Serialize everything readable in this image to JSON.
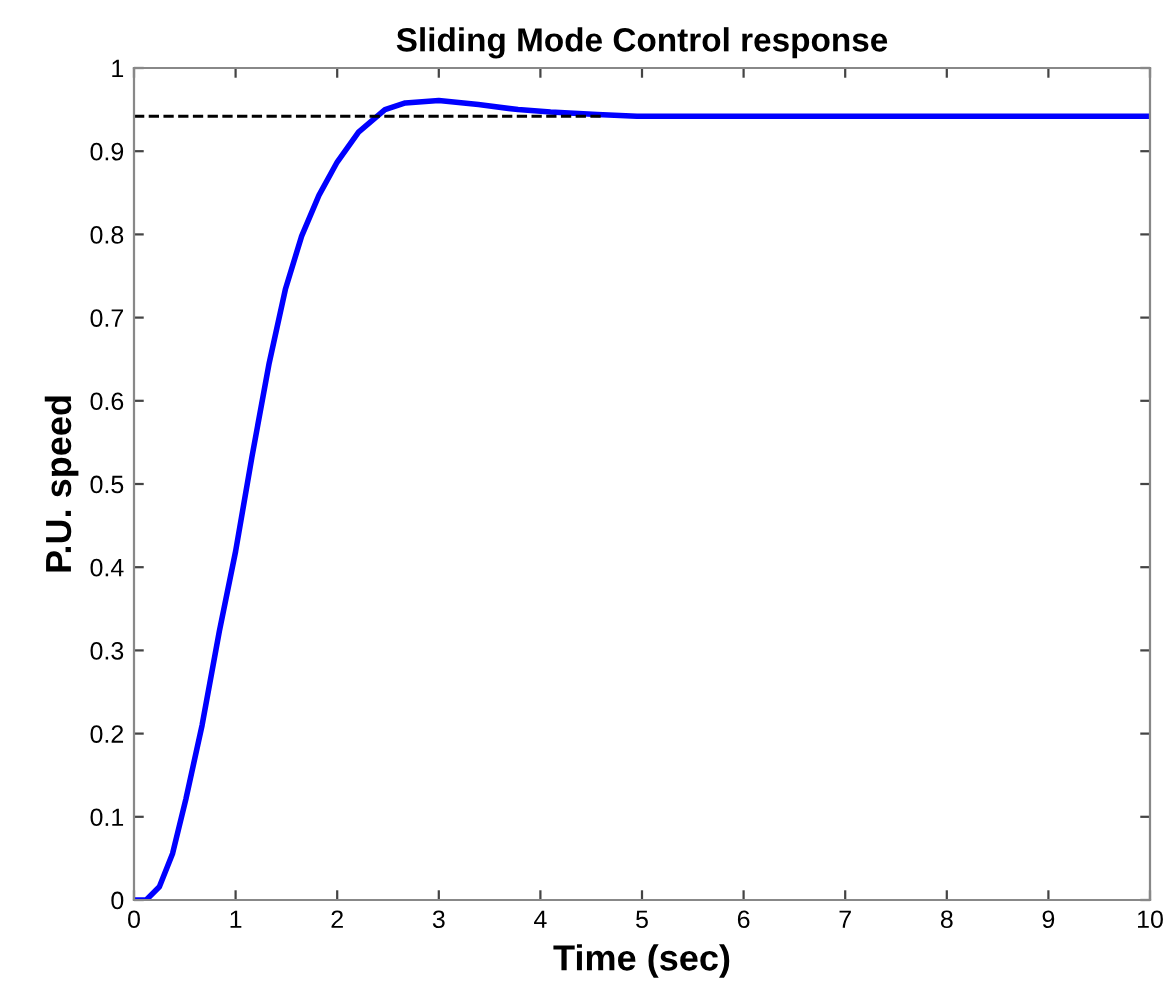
{
  "chart_data": {
    "type": "line",
    "title": "Sliding Mode Control response",
    "xlabel": "Time (sec)",
    "ylabel": "P.U. speed",
    "xlim": [
      0,
      10
    ],
    "xticks": [
      0,
      1,
      2,
      3,
      4,
      5,
      6,
      7,
      8,
      9,
      10
    ],
    "ylim": [
      0,
      1
    ],
    "yticks": [
      0,
      0.1,
      0.2,
      0.3,
      0.4,
      0.5,
      0.6,
      0.7,
      0.8,
      0.9,
      1
    ],
    "grid": false,
    "marker": "none",
    "series": [
      {
        "color": "#0000ff",
        "line_style": "solid",
        "x": [
          0,
          0.12,
          0.25,
          0.38,
          0.51,
          0.67,
          0.84,
          1.0,
          1.16,
          1.33,
          1.49,
          1.65,
          1.82,
          2.0,
          2.21,
          2.47,
          2.67,
          3.0,
          3.39,
          3.78,
          4.1,
          4.56,
          4.95,
          10
        ],
        "values": [
          0,
          0,
          0.016,
          0.056,
          0.121,
          0.21,
          0.323,
          0.419,
          0.532,
          0.645,
          0.734,
          0.798,
          0.847,
          0.887,
          0.923,
          0.95,
          0.958,
          0.961,
          0.956,
          0.95,
          0.947,
          0.944,
          0.942,
          0.942
        ]
      },
      {
        "color": "#000000",
        "line_style": "dashed",
        "x": [
          0,
          4.62
        ],
        "values": [
          0.942,
          0.942
        ]
      }
    ]
  }
}
